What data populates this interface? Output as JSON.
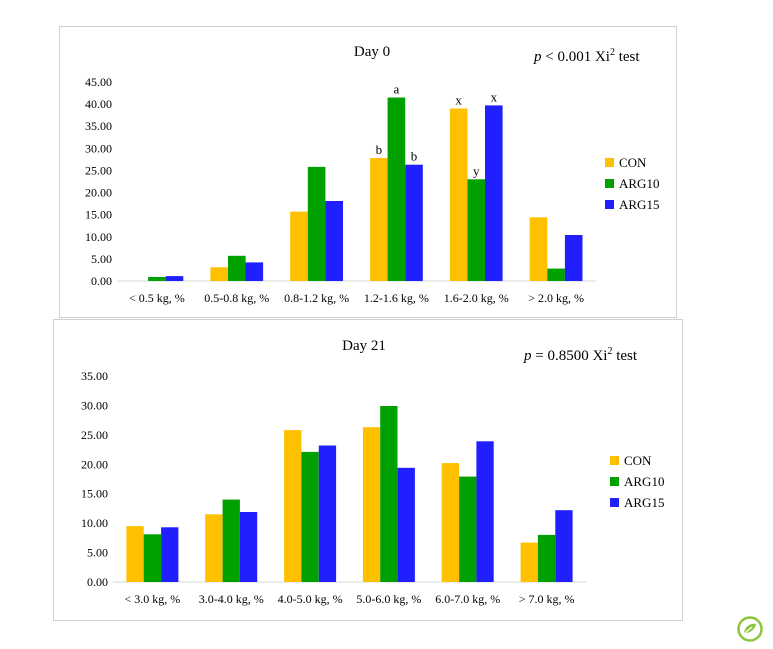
{
  "colors": {
    "CON": "#FFC000",
    "ARG10": "#00A000",
    "ARG15": "#2020FF"
  },
  "chart_data": [
    {
      "type": "bar",
      "title": "Day 0",
      "stat": {
        "p": "p",
        "text": " < 0.001 Xi",
        "sup": "2",
        "tail": " test"
      },
      "categories": [
        "< 0.5 kg, %",
        "0.5-0.8 kg, %",
        "0.8-1.2 kg, %",
        "1.2-1.6 kg, %",
        "1.6-2.0 kg, %",
        "> 2.0 kg, %"
      ],
      "series": [
        {
          "name": "CON",
          "values": [
            0.0,
            3.1,
            15.7,
            27.8,
            39.0,
            14.4
          ]
        },
        {
          "name": "ARG10",
          "values": [
            0.9,
            5.7,
            25.8,
            41.5,
            23.0,
            2.8
          ]
        },
        {
          "name": "ARG15",
          "values": [
            1.1,
            4.2,
            18.1,
            26.3,
            39.7,
            10.4
          ]
        }
      ],
      "annotations": [
        {
          "category": 3,
          "series": 0,
          "text": "b"
        },
        {
          "category": 3,
          "series": 1,
          "text": "a"
        },
        {
          "category": 3,
          "series": 2,
          "text": "b"
        },
        {
          "category": 4,
          "series": 0,
          "text": "x"
        },
        {
          "category": 4,
          "series": 1,
          "text": "y"
        },
        {
          "category": 4,
          "series": 2,
          "text": "x"
        }
      ],
      "ylim": [
        0,
        45
      ],
      "yticks": [
        "0.00",
        "5.00",
        "10.00",
        "15.00",
        "20.00",
        "25.00",
        "30.00",
        "35.00",
        "40.00",
        "45.00"
      ],
      "grid": false,
      "legend": "right"
    },
    {
      "type": "bar",
      "title": "Day 21",
      "stat": {
        "p": "p",
        "text": " = 0.8500 Xi",
        "sup": "2",
        "tail": " test"
      },
      "categories": [
        "< 3.0 kg, %",
        "3.0-4.0 kg, %",
        "4.0-5.0 kg, %",
        "5.0-6.0 kg, %",
        "6.0-7.0 kg, %",
        "> 7.0 kg, %"
      ],
      "series": [
        {
          "name": "CON",
          "values": [
            9.5,
            11.5,
            25.8,
            26.3,
            20.2,
            6.7
          ]
        },
        {
          "name": "ARG10",
          "values": [
            8.1,
            14.0,
            22.1,
            29.9,
            17.9,
            8.0
          ]
        },
        {
          "name": "ARG15",
          "values": [
            9.3,
            11.9,
            23.2,
            19.4,
            23.9,
            12.2
          ]
        }
      ],
      "annotations": [],
      "ylim": [
        0,
        35
      ],
      "yticks": [
        "0.00",
        "5.00",
        "10.00",
        "15.00",
        "20.00",
        "25.00",
        "30.00",
        "35.00"
      ],
      "grid": false,
      "legend": "right"
    }
  ]
}
